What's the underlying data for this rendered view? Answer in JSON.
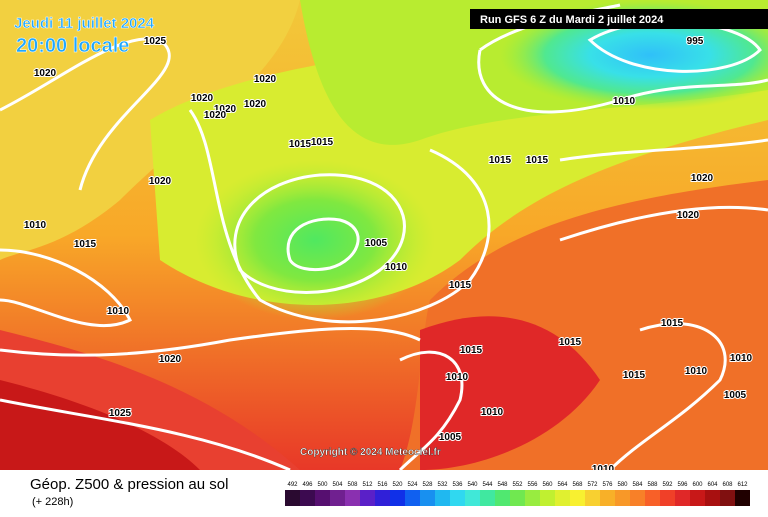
{
  "header": {
    "date": "Jeudi 11 juillet 2024",
    "time": "20:00 locale",
    "run": "Run GFS 6 Z du Mardi 2 juillet 2024"
  },
  "copyright": "Copyright © 2024 Meteociel.fr",
  "footer": {
    "title": "Géop. Z500 & pression au sol",
    "lead": "(+ 228h)"
  },
  "legend": {
    "ticks": [
      492,
      496,
      500,
      504,
      508,
      512,
      516,
      520,
      524,
      528,
      532,
      536,
      540,
      544,
      548,
      552,
      556,
      560,
      564,
      568,
      572,
      576,
      580,
      584,
      588,
      592,
      596,
      600,
      604,
      608,
      612
    ],
    "colors": [
      "#2a0a30",
      "#3c0a50",
      "#560f70",
      "#702090",
      "#8a30b0",
      "#5a20c8",
      "#3020d8",
      "#1030e8",
      "#1060f0",
      "#1890f0",
      "#20b8f0",
      "#30d8f0",
      "#40e8d8",
      "#40e8a0",
      "#50e870",
      "#70e850",
      "#98ec40",
      "#c0f030",
      "#e0f030",
      "#f8f030",
      "#f8d030",
      "#f8b028",
      "#f89828",
      "#f88028",
      "#f86028",
      "#f04028",
      "#e02828",
      "#c81818",
      "#a81010",
      "#801010",
      "#200000"
    ]
  },
  "isobars": [
    1025,
    1020,
    1020,
    1020,
    1020,
    1020,
    1020,
    1015,
    1015,
    1020,
    1010,
    1015,
    995,
    1010,
    1015,
    1015,
    1020,
    1020,
    1005,
    1010,
    1015,
    1010,
    1015,
    1015,
    1015,
    1020,
    1010,
    1015,
    1010,
    1010,
    1025,
    1010,
    1005,
    1005,
    1010
  ]
}
